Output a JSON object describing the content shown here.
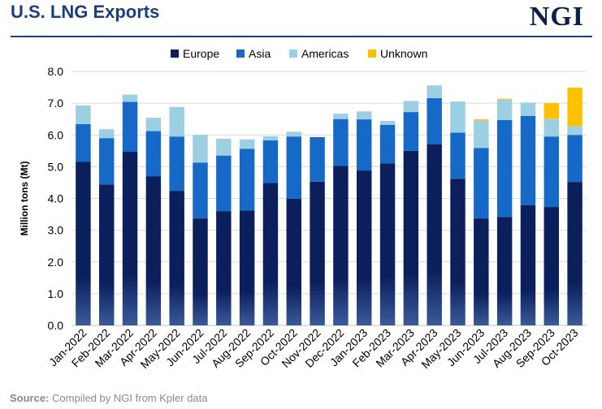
{
  "header": {
    "title": "U.S. LNG Exports",
    "logo_text": "NGI"
  },
  "footer": {
    "source_label": "Source:",
    "source_text": "Compiled by NGI from Kpler data"
  },
  "colors": {
    "Europe": "#0b1f5c",
    "Asia": "#1769c8",
    "Americas": "#9dcfe3",
    "Unknown": "#ffc000",
    "title": "#1c3f7a"
  },
  "chart_data": {
    "type": "bar",
    "stacked": true,
    "title": "",
    "xlabel": "",
    "ylabel": "Million tons (Mt)",
    "ylim": [
      0,
      8
    ],
    "yticks": [
      "0.0",
      "1.0",
      "2.0",
      "3.0",
      "4.0",
      "5.0",
      "6.0",
      "7.0",
      "8.0"
    ],
    "grid": true,
    "legend_position": "top-center",
    "categories": [
      "Jan-2022",
      "Feb-2022",
      "Mar-2022",
      "Apr-2022",
      "May-2022",
      "Jun-2022",
      "Jul-2022",
      "Aug-2022",
      "Sep-2022",
      "Oct-2022",
      "Nov-2022",
      "Dec-2022",
      "Jan-2023",
      "Feb-2023",
      "Mar-2023",
      "Apr-2023",
      "May-2023",
      "Jun-2023",
      "Jul-2023",
      "Aug-2023",
      "Sep-2023",
      "Oct-2023"
    ],
    "series": [
      {
        "name": "Europe",
        "values": [
          5.15,
          4.44,
          5.47,
          4.7,
          4.24,
          3.37,
          3.6,
          3.62,
          4.49,
          3.99,
          4.53,
          5.03,
          4.88,
          5.1,
          5.5,
          5.7,
          4.62,
          3.37,
          3.42,
          3.79,
          3.73,
          4.52
        ]
      },
      {
        "name": "Asia",
        "values": [
          1.19,
          1.46,
          1.57,
          1.42,
          1.71,
          1.76,
          1.75,
          1.94,
          1.34,
          1.96,
          1.4,
          1.47,
          1.61,
          1.22,
          1.22,
          1.46,
          1.45,
          2.22,
          3.05,
          2.81,
          2.22,
          1.48
        ]
      },
      {
        "name": "Americas",
        "values": [
          0.59,
          0.28,
          0.23,
          0.42,
          0.93,
          0.87,
          0.53,
          0.3,
          0.13,
          0.15,
          0.0,
          0.17,
          0.25,
          0.12,
          0.35,
          0.4,
          0.98,
          0.86,
          0.64,
          0.42,
          0.56,
          0.28
        ]
      },
      {
        "name": "Unknown",
        "values": [
          0,
          0,
          0,
          0,
          0,
          0,
          0,
          0,
          0,
          0,
          0,
          0,
          0,
          0,
          0,
          0,
          0,
          0.04,
          0.03,
          0,
          0.49,
          1.21
        ]
      }
    ]
  }
}
